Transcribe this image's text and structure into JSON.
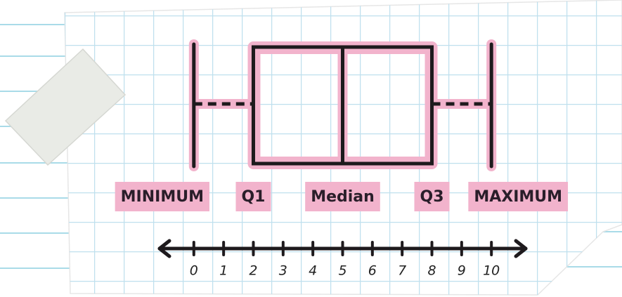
{
  "chart_data": {
    "type": "box",
    "labels": [
      "MINIMUM",
      "Q1",
      "Median",
      "Q3",
      "MAXIMUM"
    ],
    "values": [
      0,
      2,
      5,
      8,
      10
    ],
    "xlim": [
      -1.2,
      11.2
    ],
    "xticks": [
      0,
      1,
      2,
      3,
      4,
      5,
      6,
      7,
      8,
      9,
      10
    ],
    "color": "#f2b3cc"
  }
}
